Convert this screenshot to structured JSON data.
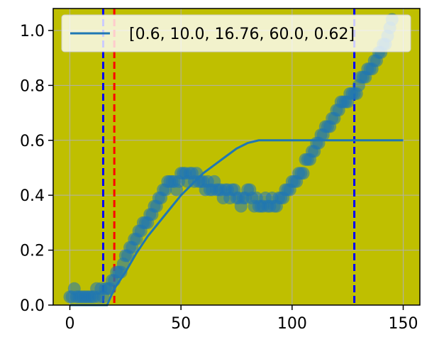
{
  "chart_data": {
    "type": "scatter",
    "title": "",
    "xlabel": "",
    "ylabel": "",
    "xlim": [
      -7.5,
      157.5
    ],
    "ylim": [
      0.0,
      1.08
    ],
    "xticks": [
      0,
      50,
      100,
      150
    ],
    "yticks": [
      0.0,
      0.2,
      0.4,
      0.6,
      0.8,
      1.0
    ],
    "xtick_labels": [
      "0",
      "50",
      "100",
      "150"
    ],
    "ytick_labels": [
      "0.0",
      "0.2",
      "0.4",
      "0.6",
      "0.8",
      "1.0"
    ],
    "grid": true,
    "background_color": "#bfbf00",
    "legend": {
      "placement": "top",
      "entries": [
        "[0.6, 10.0, 16.76, 60.0, 0.62]"
      ]
    },
    "fit_line": {
      "name": "[0.6, 10.0, 16.76, 60.0, 0.62]",
      "color": "#1f77b4",
      "x": [
        0,
        10,
        16.76,
        20,
        25,
        30,
        35,
        40,
        45,
        50,
        55,
        60,
        65,
        70,
        75,
        80,
        85,
        90,
        100,
        110,
        120,
        130,
        140,
        150
      ],
      "y": [
        0.0,
        0.0,
        0.0,
        0.06,
        0.12,
        0.19,
        0.25,
        0.3,
        0.35,
        0.4,
        0.44,
        0.48,
        0.51,
        0.54,
        0.57,
        0.59,
        0.6,
        0.6,
        0.6,
        0.6,
        0.6,
        0.6,
        0.6,
        0.6
      ]
    },
    "scatter_series": {
      "color": "#1f77b4",
      "x": [
        0,
        1,
        2,
        3,
        4,
        5,
        6,
        7,
        8,
        9,
        10,
        11,
        12,
        13,
        14,
        15,
        16,
        17,
        18,
        19,
        20,
        21,
        22,
        23,
        24,
        25,
        26,
        27,
        28,
        29,
        30,
        31,
        32,
        33,
        34,
        35,
        36,
        37,
        38,
        39,
        40,
        41,
        42,
        43,
        44,
        45,
        46,
        47,
        48,
        49,
        50,
        51,
        52,
        53,
        54,
        55,
        56,
        57,
        58,
        59,
        60,
        61,
        62,
        63,
        64,
        65,
        66,
        67,
        68,
        69,
        70,
        71,
        72,
        73,
        74,
        75,
        76,
        77,
        78,
        79,
        80,
        81,
        82,
        83,
        84,
        85,
        86,
        87,
        88,
        89,
        90,
        91,
        92,
        93,
        94,
        95,
        96,
        97,
        98,
        99,
        100,
        101,
        102,
        103,
        104,
        105,
        106,
        107,
        108,
        109,
        110,
        111,
        112,
        113,
        114,
        115,
        116,
        117,
        118,
        119,
        120,
        121,
        122,
        123,
        124,
        125,
        126,
        127,
        128,
        129,
        130,
        131,
        132,
        133,
        134,
        135,
        136,
        137,
        138,
        139,
        140,
        141,
        142,
        143,
        144,
        145
      ],
      "y": [
        0.03,
        0.03,
        0.06,
        0.03,
        0.03,
        0.03,
        0.03,
        0.03,
        0.03,
        0.03,
        0.03,
        0.03,
        0.06,
        0.03,
        0.06,
        0.03,
        0.06,
        0.06,
        0.06,
        0.09,
        0.09,
        0.12,
        0.12,
        0.12,
        0.15,
        0.18,
        0.18,
        0.21,
        0.21,
        0.24,
        0.24,
        0.27,
        0.27,
        0.3,
        0.3,
        0.3,
        0.33,
        0.33,
        0.36,
        0.36,
        0.39,
        0.39,
        0.42,
        0.42,
        0.45,
        0.45,
        0.45,
        0.45,
        0.42,
        0.45,
        0.48,
        0.48,
        0.48,
        0.45,
        0.48,
        0.48,
        0.45,
        0.48,
        0.45,
        0.45,
        0.45,
        0.42,
        0.45,
        0.42,
        0.42,
        0.45,
        0.42,
        0.42,
        0.42,
        0.39,
        0.42,
        0.42,
        0.39,
        0.42,
        0.42,
        0.39,
        0.39,
        0.36,
        0.39,
        0.39,
        0.42,
        0.42,
        0.39,
        0.36,
        0.39,
        0.36,
        0.36,
        0.36,
        0.39,
        0.36,
        0.36,
        0.39,
        0.36,
        0.36,
        0.39,
        0.39,
        0.39,
        0.42,
        0.42,
        0.42,
        0.45,
        0.45,
        0.45,
        0.48,
        0.48,
        0.48,
        0.53,
        0.53,
        0.53,
        0.56,
        0.56,
        0.59,
        0.59,
        0.62,
        0.62,
        0.65,
        0.65,
        0.65,
        0.68,
        0.68,
        0.71,
        0.71,
        0.74,
        0.74,
        0.74,
        0.74,
        0.77,
        0.77,
        0.77,
        0.77,
        0.8,
        0.83,
        0.83,
        0.83,
        0.86,
        0.86,
        0.86,
        0.89,
        0.89,
        0.92,
        0.92,
        0.95,
        0.95,
        0.98,
        1.01,
        1.04
      ]
    },
    "vlines": [
      {
        "x": 15,
        "color": "#0000ff",
        "style": "dashed"
      },
      {
        "x": 20,
        "color": "#ff0000",
        "style": "dashed"
      },
      {
        "x": 128,
        "color": "#0000ff",
        "style": "dashed"
      }
    ]
  }
}
